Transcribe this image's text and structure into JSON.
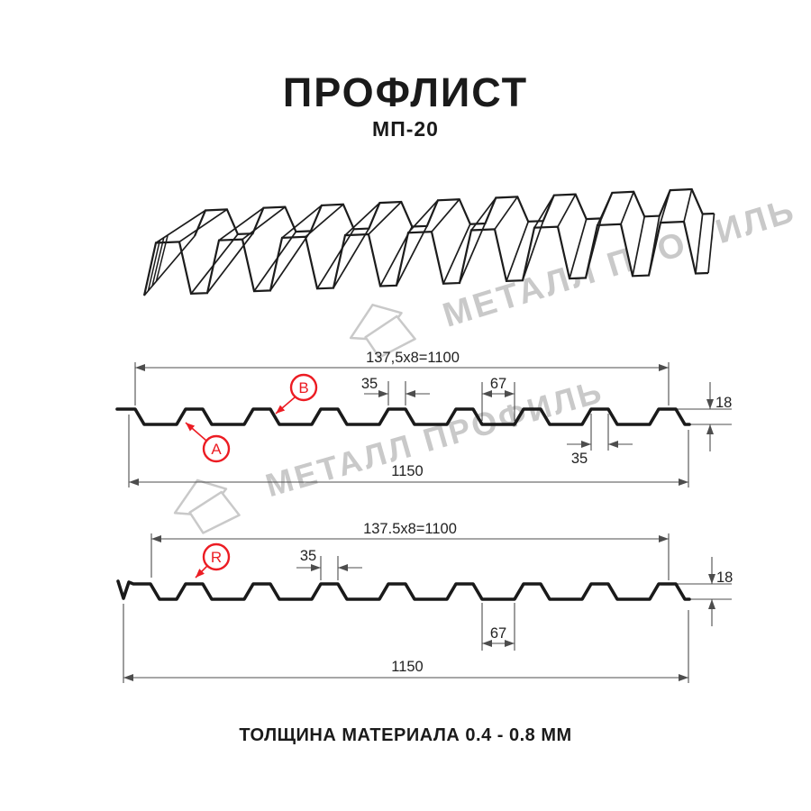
{
  "title": "ПРОФЛИСТ",
  "subtitle": "МП-20",
  "watermark": {
    "text": "МЕТАЛЛ ПРОФИЛЬ"
  },
  "footer": {
    "text": "ТОЛЩИНА МАТЕРИАЛА 0.4 - 0.8 ММ"
  },
  "diagram1": {
    "working_width": "137,5x8=1100",
    "rib_top_width": "35",
    "valley_width": "67",
    "profile_height": "18",
    "rib_bottom_width": "35",
    "overall_width": "1150",
    "marker_a": "A",
    "marker_b": "B"
  },
  "diagram2": {
    "working_width": "137.5x8=1100",
    "rib_top_width": "35",
    "valley_width": "67",
    "profile_height": "18",
    "overall_width": "1150",
    "marker_r": "R"
  },
  "colors": {
    "line": "#1a1a1a",
    "dim": "#4d4d4d",
    "accent_red": "#ec1c23",
    "watermark": "#c9c9c9"
  }
}
